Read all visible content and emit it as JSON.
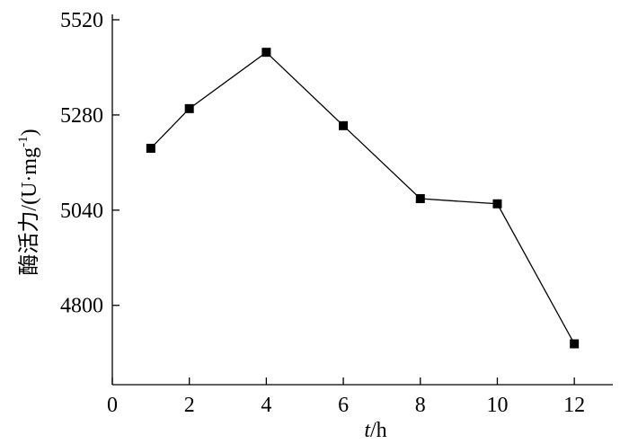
{
  "chart_data": {
    "type": "line",
    "x": [
      1,
      2,
      4,
      6,
      8,
      10,
      12
    ],
    "series": [
      {
        "color": "#000000",
        "values": [
          5196,
          5296,
          5438,
          5253,
          5069,
          5056,
          4703
        ]
      }
    ],
    "xlim": [
      0,
      13
    ],
    "xticks": [
      0,
      2,
      4,
      6,
      8,
      10,
      12
    ],
    "ylim": [
      4600,
      5520
    ],
    "yticks": [
      4800,
      5040,
      5280,
      5520
    ],
    "xlabel": {
      "italic": "t",
      "rest": "/h"
    },
    "ylabel": {
      "main": "酶活力/(U·mg",
      "sup": "-1",
      "end": ")"
    }
  }
}
